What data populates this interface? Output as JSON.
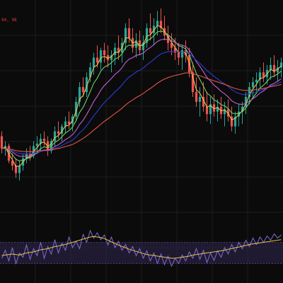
{
  "colors": {
    "background": "#0b0b0b",
    "grid": "#1e1e1e",
    "up": "#26a69a",
    "down": "#ef5350",
    "wick_up": "#26a69a",
    "wick_down": "#ef5350",
    "label": "#e53935",
    "ma_fast": "#e6c34a",
    "ma_short": "#6fd16a",
    "ma_mid": "#c060d8",
    "ma_long": "#2a3dd6",
    "ma_slow": "#e05545",
    "osc_line": "#7e6bd8",
    "osc_signal": "#e6c34a",
    "osc_band": "#2a2142"
  },
  "header": {
    "price_label": "94, 98"
  },
  "chart_data": [
    {
      "type": "candlestick",
      "title": "",
      "grid": true,
      "x_count": 80,
      "ylim": [
        0,
        100
      ],
      "candles": [
        [
          62,
          64,
          55,
          57
        ],
        [
          57,
          60,
          54,
          58
        ],
        [
          58,
          59,
          51,
          52
        ],
        [
          52,
          55,
          48,
          50
        ],
        [
          50,
          53,
          45,
          47
        ],
        [
          47,
          52,
          44,
          50
        ],
        [
          50,
          55,
          48,
          53
        ],
        [
          53,
          57,
          51,
          55
        ],
        [
          55,
          58,
          52,
          54
        ],
        [
          54,
          60,
          53,
          58
        ],
        [
          58,
          62,
          55,
          59
        ],
        [
          59,
          63,
          56,
          61
        ],
        [
          61,
          64,
          58,
          60
        ],
        [
          60,
          62,
          54,
          56
        ],
        [
          56,
          61,
          55,
          60
        ],
        [
          60,
          66,
          58,
          64
        ],
        [
          64,
          68,
          61,
          63
        ],
        [
          63,
          67,
          60,
          66
        ],
        [
          66,
          70,
          63,
          68
        ],
        [
          68,
          72,
          65,
          67
        ],
        [
          67,
          71,
          64,
          70
        ],
        [
          70,
          78,
          68,
          76
        ],
        [
          76,
          84,
          74,
          82
        ],
        [
          82,
          86,
          78,
          80
        ],
        [
          80,
          88,
          78,
          86
        ],
        [
          86,
          92,
          84,
          90
        ],
        [
          90,
          96,
          87,
          94
        ],
        [
          94,
          99,
          90,
          92
        ],
        [
          92,
          98,
          89,
          97
        ],
        [
          97,
          100,
          92,
          95
        ],
        [
          95,
          99,
          90,
          93
        ],
        [
          93,
          97,
          88,
          95
        ],
        [
          95,
          100,
          91,
          98
        ],
        [
          98,
          103,
          93,
          96
        ],
        [
          96,
          102,
          92,
          100
        ],
        [
          100,
          108,
          97,
          106
        ],
        [
          106,
          110,
          100,
          102
        ],
        [
          102,
          106,
          96,
          98
        ],
        [
          98,
          104,
          94,
          101
        ],
        [
          101,
          105,
          95,
          97
        ],
        [
          97,
          103,
          93,
          100
        ],
        [
          100,
          108,
          98,
          106
        ],
        [
          106,
          112,
          101,
          104
        ],
        [
          104,
          110,
          99,
          107
        ],
        [
          107,
          113,
          103,
          109
        ],
        [
          109,
          114,
          104,
          106
        ],
        [
          106,
          111,
          101,
          103
        ],
        [
          103,
          107,
          97,
          100
        ],
        [
          100,
          104,
          95,
          98
        ],
        [
          98,
          102,
          93,
          96
        ],
        [
          96,
          100,
          91,
          94
        ],
        [
          94,
          99,
          89,
          97
        ],
        [
          97,
          101,
          92,
          95
        ],
        [
          95,
          98,
          86,
          88
        ],
        [
          88,
          92,
          78,
          80
        ],
        [
          80,
          86,
          74,
          76
        ],
        [
          76,
          82,
          70,
          78
        ],
        [
          78,
          84,
          72,
          74
        ],
        [
          74,
          80,
          68,
          71
        ],
        [
          71,
          78,
          67,
          75
        ],
        [
          75,
          79,
          70,
          72
        ],
        [
          72,
          77,
          68,
          74
        ],
        [
          74,
          78,
          69,
          71
        ],
        [
          71,
          76,
          66,
          73
        ],
        [
          73,
          77,
          68,
          70
        ],
        [
          70,
          74,
          64,
          66
        ],
        [
          66,
          72,
          63,
          70
        ],
        [
          70,
          75,
          66,
          72
        ],
        [
          72,
          76,
          67,
          74
        ],
        [
          74,
          80,
          71,
          78
        ],
        [
          78,
          84,
          75,
          82
        ],
        [
          82,
          86,
          78,
          84
        ],
        [
          84,
          88,
          80,
          85
        ],
        [
          85,
          90,
          82,
          88
        ],
        [
          88,
          92,
          84,
          86
        ],
        [
          86,
          91,
          83,
          89
        ],
        [
          89,
          94,
          85,
          91
        ],
        [
          91,
          95,
          86,
          88
        ],
        [
          88,
          93,
          84,
          90
        ],
        [
          90,
          94,
          86,
          92
        ]
      ],
      "moving_averages": [
        {
          "values_key": "ma_fast"
        },
        {
          "values_key": "ma_short"
        },
        {
          "values_key": "ma_mid"
        },
        {
          "values_key": "ma_long"
        },
        {
          "values_key": "ma_slow"
        }
      ]
    },
    {
      "type": "line",
      "title": "",
      "grid": true,
      "ylim": [
        0,
        100
      ],
      "band": [
        30,
        70
      ],
      "series": [
        {
          "color_key": "osc_line",
          "values": [
            40,
            55,
            35,
            60,
            30,
            50,
            42,
            65,
            38,
            58,
            45,
            70,
            40,
            62,
            48,
            75,
            50,
            68,
            55,
            80,
            60,
            72,
            58,
            85,
            70,
            92,
            78,
            88,
            75,
            84,
            65,
            80,
            60,
            72,
            55,
            66,
            50,
            62,
            45,
            58,
            40,
            54,
            35,
            50,
            30,
            48,
            28,
            44,
            25,
            40,
            30,
            46,
            35,
            52,
            40,
            58,
            38,
            55,
            32,
            50,
            36,
            54,
            42,
            60,
            48,
            66,
            52,
            70,
            58,
            74,
            62,
            78,
            66,
            80,
            70,
            82,
            74,
            86,
            78,
            84
          ]
        },
        {
          "color_key": "osc_signal",
          "values": [
            45,
            46,
            47,
            48,
            47,
            46,
            48,
            50,
            51,
            52,
            54,
            56,
            57,
            58,
            60,
            62,
            63,
            65,
            66,
            68,
            70,
            72,
            74,
            76,
            78,
            80,
            81,
            80,
            79,
            77,
            74,
            71,
            68,
            65,
            62,
            60,
            57,
            55,
            53,
            51,
            49,
            47,
            46,
            45,
            44,
            43,
            42,
            41,
            40,
            40,
            41,
            42,
            43,
            44,
            46,
            47,
            48,
            49,
            50,
            51,
            52,
            53,
            54,
            55,
            57,
            58,
            60,
            61,
            63,
            64,
            66,
            67,
            68,
            69,
            70,
            71,
            72,
            73,
            74,
            75
          ]
        }
      ]
    }
  ]
}
